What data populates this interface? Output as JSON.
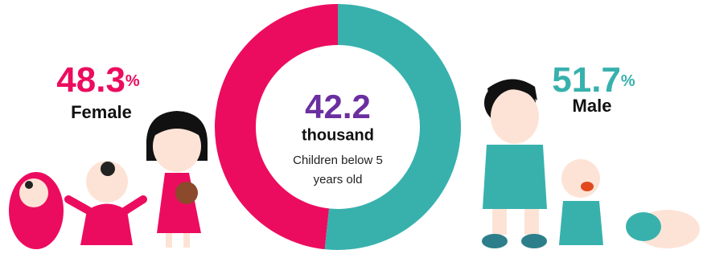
{
  "chart_data": {
    "type": "donut",
    "center_value": "42.2",
    "center_unit": "thousand",
    "center_label": "Children below 5 years old",
    "categories": [
      "Female",
      "Male"
    ],
    "values": [
      48.3,
      51.7
    ],
    "value_labels": [
      "48.3%",
      "51.7%"
    ],
    "colors": [
      "#ec0c5f",
      "#38b1ad"
    ]
  }
}
